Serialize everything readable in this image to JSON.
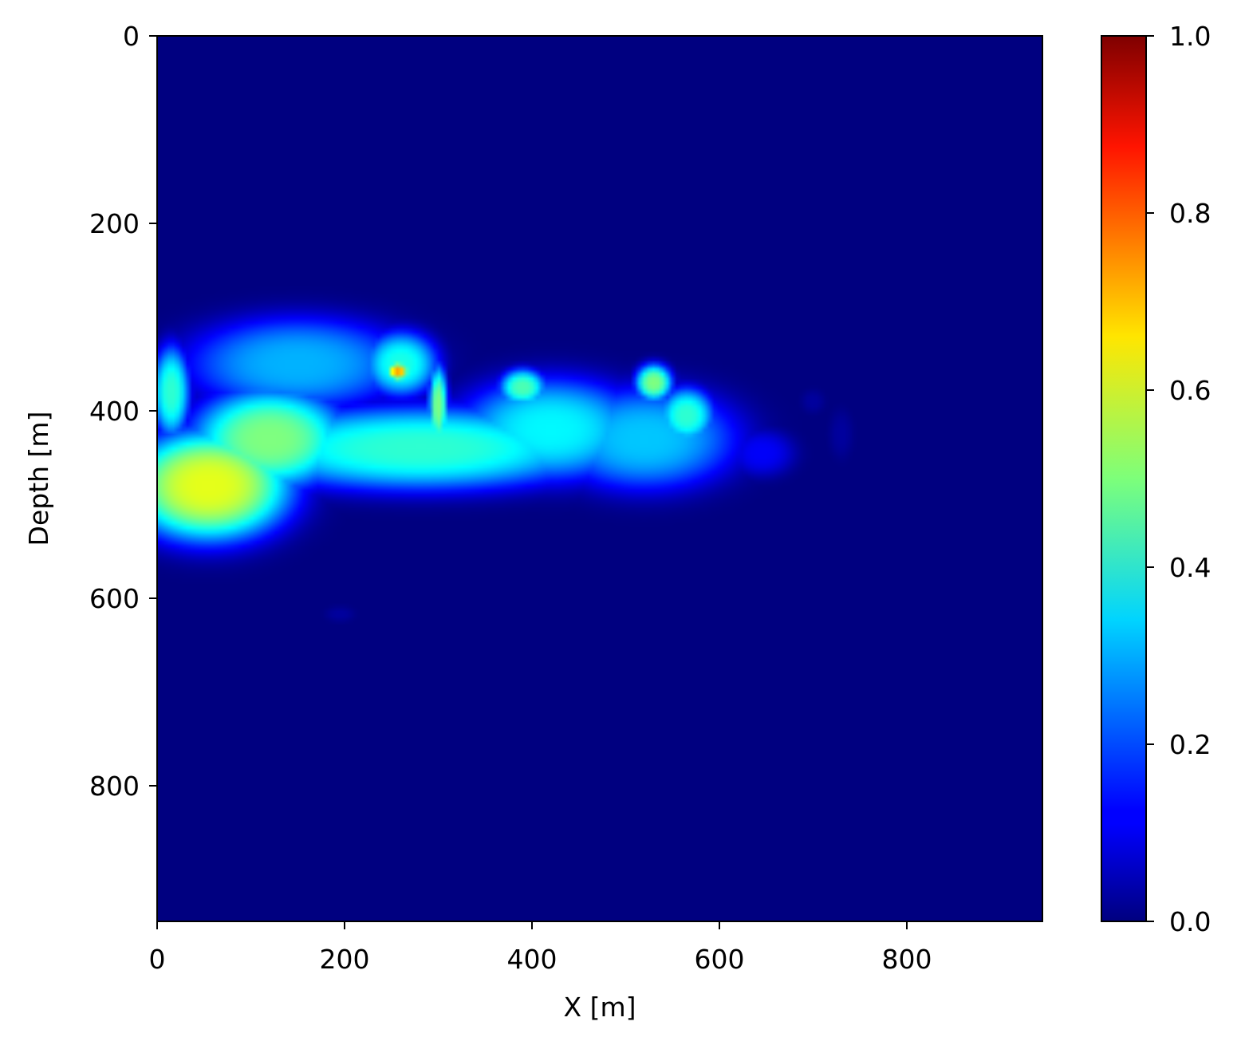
{
  "chart_data": {
    "type": "heatmap",
    "title": "",
    "xlabel": "X [m]",
    "ylabel": "Depth [m]",
    "xlim": [
      0,
      945
    ],
    "ylim": [
      945,
      0
    ],
    "y_inverted": true,
    "xticks": [
      "0",
      "200",
      "400",
      "600",
      "800"
    ],
    "yticks": [
      "0",
      "200",
      "400",
      "600",
      "800"
    ],
    "colormap": "jet",
    "colorbar": {
      "range": [
        0.0,
        1.0
      ],
      "ticks": [
        "0.0",
        "0.2",
        "0.4",
        "0.6",
        "0.8",
        "1.0"
      ]
    },
    "background_value": 0.0,
    "features": [
      {
        "x": 55,
        "depth": 480,
        "sx": 90,
        "sy": 60,
        "value": 0.6
      },
      {
        "x": 120,
        "depth": 430,
        "sx": 85,
        "sy": 55,
        "value": 0.5
      },
      {
        "x": 15,
        "depth": 380,
        "sx": 20,
        "sy": 50,
        "value": 0.42
      },
      {
        "x": 150,
        "depth": 350,
        "sx": 120,
        "sy": 50,
        "value": 0.3
      },
      {
        "x": 260,
        "depth": 350,
        "sx": 40,
        "sy": 35,
        "value": 0.4
      },
      {
        "x": 257,
        "depth": 358,
        "sx": 12,
        "sy": 10,
        "value": 0.72
      },
      {
        "x": 300,
        "depth": 395,
        "sx": 10,
        "sy": 45,
        "value": 0.5
      },
      {
        "x": 280,
        "depth": 440,
        "sx": 200,
        "sy": 45,
        "value": 0.42
      },
      {
        "x": 420,
        "depth": 420,
        "sx": 100,
        "sy": 55,
        "value": 0.37
      },
      {
        "x": 390,
        "depth": 375,
        "sx": 25,
        "sy": 20,
        "value": 0.45
      },
      {
        "x": 530,
        "depth": 370,
        "sx": 20,
        "sy": 20,
        "value": 0.5
      },
      {
        "x": 565,
        "depth": 405,
        "sx": 30,
        "sy": 30,
        "value": 0.42
      },
      {
        "x": 520,
        "depth": 430,
        "sx": 100,
        "sy": 55,
        "value": 0.32
      },
      {
        "x": 645,
        "depth": 445,
        "sx": 35,
        "sy": 25,
        "value": 0.12
      },
      {
        "x": 700,
        "depth": 390,
        "sx": 12,
        "sy": 12,
        "value": 0.03
      },
      {
        "x": 730,
        "depth": 425,
        "sx": 12,
        "sy": 25,
        "value": 0.03
      },
      {
        "x": 195,
        "depth": 617,
        "sx": 15,
        "sy": 8,
        "value": 0.03
      }
    ]
  }
}
